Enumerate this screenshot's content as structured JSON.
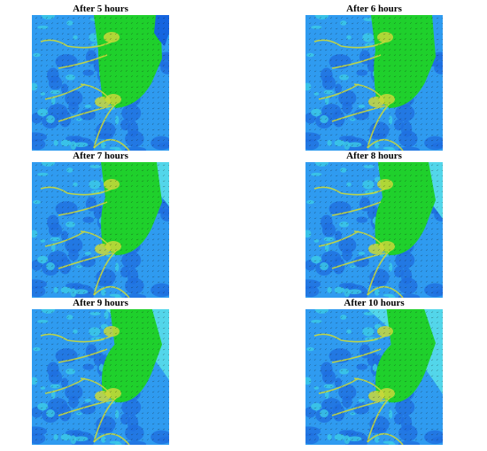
{
  "figure": {
    "panels": [
      {
        "title": "After 5 hours",
        "flood_extent": 0.35,
        "offshore_light": 0.0
      },
      {
        "title": "After 6 hours",
        "flood_extent": 0.3,
        "offshore_light": 0.0
      },
      {
        "title": "After 7 hours",
        "flood_extent": 0.25,
        "offshore_light": 0.05
      },
      {
        "title": "After 8 hours",
        "flood_extent": 0.2,
        "offshore_light": 0.12
      },
      {
        "title": "After 9 hours",
        "flood_extent": 0.12,
        "offshore_light": 0.2
      },
      {
        "title": "After 10 hours",
        "flood_extent": 0.08,
        "offshore_light": 0.28
      }
    ],
    "colors": {
      "deep": "#1f6fe0",
      "mid": "#2f9bf0",
      "shallow": "#3ecfe6",
      "flood": "#1fd02c",
      "channel": "#c9d83a",
      "vector": "#111111",
      "sea_dark": "#1565e0",
      "sea_light": "#53d6ea"
    }
  }
}
